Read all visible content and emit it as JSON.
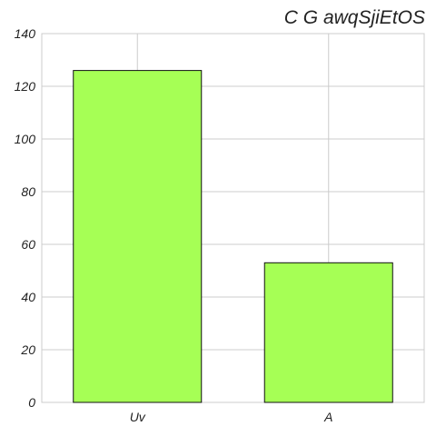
{
  "chart_data": {
    "type": "bar",
    "title": "C G awqSjiEtOS",
    "xlabel": "",
    "ylabel": "",
    "categories": [
      "Uv",
      "A"
    ],
    "values": [
      126,
      53
    ],
    "ylim": [
      0,
      140
    ],
    "yticks": [
      0,
      20,
      40,
      60,
      80,
      100,
      120,
      140
    ],
    "grid": true,
    "legend": "none",
    "colors": {
      "bar": "#a6ff55",
      "bar_edge": "#111111",
      "grid": "#cccccc",
      "text": "#222222"
    }
  }
}
